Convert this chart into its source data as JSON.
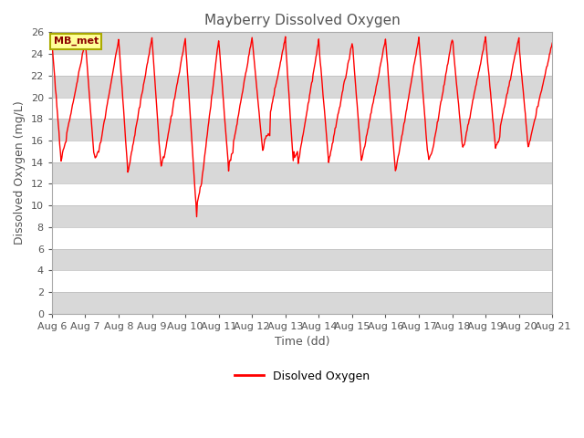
{
  "title": "Mayberry Dissolved Oxygen",
  "ylabel": "Dissolved Oxygen (mg/L)",
  "xlabel": "Time (dd)",
  "legend_label": "Disolved Oxygen",
  "annotation_label": "MB_met",
  "ylim": [
    0,
    26
  ],
  "line_color": "#FF0000",
  "background_color": "#FFFFFF",
  "band_color_light": "#FFFFFF",
  "band_color_dark": "#D8D8D8",
  "title_color": "#555555",
  "label_color": "#555555"
}
